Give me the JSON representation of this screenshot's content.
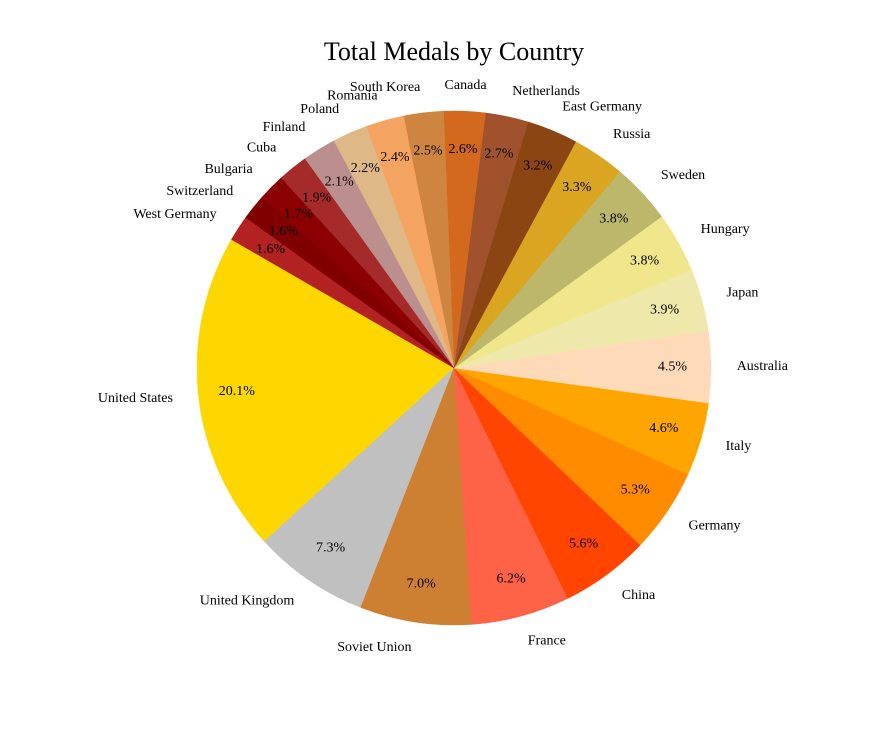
{
  "chart_data": {
    "type": "pie",
    "title": "Total Medals by Country",
    "start_angle_deg": 150,
    "direction": "counterclockwise",
    "slices": [
      {
        "label": "United States",
        "percent": 20.1,
        "pct_text": "20.1%",
        "color": "#FFD700"
      },
      {
        "label": "United Kingdom",
        "percent": 7.3,
        "pct_text": "7.3%",
        "color": "#C0C0C0"
      },
      {
        "label": "Soviet Union",
        "percent": 7.0,
        "pct_text": "7.0%",
        "color": "#CD7F32"
      },
      {
        "label": "France",
        "percent": 6.2,
        "pct_text": "6.2%",
        "color": "#FF6347"
      },
      {
        "label": "China",
        "percent": 5.6,
        "pct_text": "5.6%",
        "color": "#FF4500"
      },
      {
        "label": "Germany",
        "percent": 5.3,
        "pct_text": "5.3%",
        "color": "#FF8C00"
      },
      {
        "label": "Italy",
        "percent": 4.6,
        "pct_text": "4.6%",
        "color": "#FFA500"
      },
      {
        "label": "Australia",
        "percent": 4.5,
        "pct_text": "4.5%",
        "color": "#FFDAB9"
      },
      {
        "label": "Japan",
        "percent": 3.9,
        "pct_text": "3.9%",
        "color": "#EEE8AA"
      },
      {
        "label": "Hungary",
        "percent": 3.8,
        "pct_text": "3.8%",
        "color": "#F0E68C"
      },
      {
        "label": "Sweden",
        "percent": 3.8,
        "pct_text": "3.8%",
        "color": "#BDB76B"
      },
      {
        "label": "Russia",
        "percent": 3.3,
        "pct_text": "3.3%",
        "color": "#DAA520"
      },
      {
        "label": "East Germany",
        "percent": 3.2,
        "pct_text": "3.2%",
        "color": "#8B4513"
      },
      {
        "label": "Netherlands",
        "percent": 2.7,
        "pct_text": "2.7%",
        "color": "#A0522D"
      },
      {
        "label": "Canada",
        "percent": 2.6,
        "pct_text": "2.6%",
        "color": "#D2691E"
      },
      {
        "label": "South Korea",
        "percent": 2.5,
        "pct_text": "2.5%",
        "color": "#CD853F"
      },
      {
        "label": "Romania",
        "percent": 2.4,
        "pct_text": "2.4%",
        "color": "#F4A460"
      },
      {
        "label": "Poland",
        "percent": 2.2,
        "pct_text": "2.2%",
        "color": "#DEB887"
      },
      {
        "label": "Finland",
        "percent": 2.1,
        "pct_text": "2.1%",
        "color": "#BC8F8F"
      },
      {
        "label": "Cuba",
        "percent": 1.9,
        "pct_text": "1.9%",
        "color": "#A52A2A"
      },
      {
        "label": "Bulgaria",
        "percent": 1.7,
        "pct_text": "1.7%",
        "color": "#8B0000"
      },
      {
        "label": "Switzerland",
        "percent": 1.6,
        "pct_text": "1.6%",
        "color": "#800000"
      },
      {
        "label": "West Germany",
        "percent": 1.6,
        "pct_text": "1.6%",
        "color": "#B22222"
      }
    ]
  }
}
